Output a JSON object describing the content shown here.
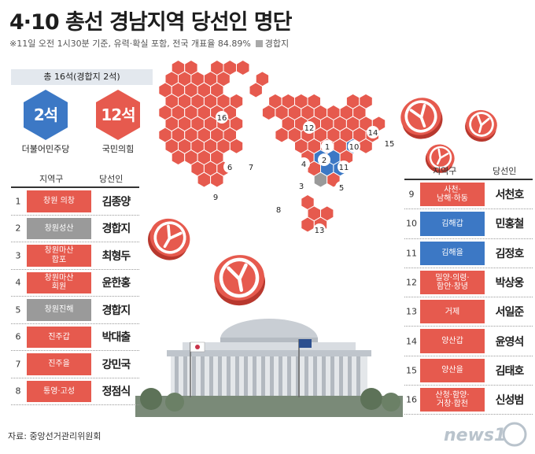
{
  "title": "4·10 총선 경남지역 당선인 명단",
  "subtitle": "※11일 오전 1시30분 기준, 유력·확실 포함, 전국 개표율 84.89%",
  "legend_label": "경합지",
  "summary": {
    "total": "총 16석(경합지 2석)",
    "parties": [
      {
        "seats": "2석",
        "name": "더불어민주당",
        "color": "#3c78c5"
      },
      {
        "seats": "12석",
        "name": "국민의힘",
        "color": "#e65a4e"
      }
    ]
  },
  "table_headers": {
    "district": "지역구",
    "winner": "당선인"
  },
  "rows": [
    {
      "num": "1",
      "district": "창원 의창",
      "name": "김종양",
      "party": "red"
    },
    {
      "num": "2",
      "district": "창원성산",
      "name": "경합지",
      "party": "gray"
    },
    {
      "num": "3",
      "district": "창원마산\n합포",
      "name": "최형두",
      "party": "red"
    },
    {
      "num": "4",
      "district": "창원마산\n회원",
      "name": "윤한홍",
      "party": "red"
    },
    {
      "num": "5",
      "district": "창원진해",
      "name": "경합지",
      "party": "gray"
    },
    {
      "num": "6",
      "district": "진주갑",
      "name": "박대출",
      "party": "red"
    },
    {
      "num": "7",
      "district": "진주을",
      "name": "강민국",
      "party": "red"
    },
    {
      "num": "8",
      "district": "통영·고성",
      "name": "정점식",
      "party": "red"
    },
    {
      "num": "9",
      "district": "사천·\n남해·하동",
      "name": "서천호",
      "party": "red"
    },
    {
      "num": "10",
      "district": "김해갑",
      "name": "민홍철",
      "party": "blue"
    },
    {
      "num": "11",
      "district": "김해을",
      "name": "김정호",
      "party": "blue"
    },
    {
      "num": "12",
      "district": "밀양·의령·\n함안·창녕",
      "name": "박상웅",
      "party": "red"
    },
    {
      "num": "13",
      "district": "거제",
      "name": "서일준",
      "party": "red"
    },
    {
      "num": "14",
      "district": "양산갑",
      "name": "윤영석",
      "party": "red"
    },
    {
      "num": "15",
      "district": "양산을",
      "name": "김태호",
      "party": "red"
    },
    {
      "num": "16",
      "district": "산청·함양·\n거창·합천",
      "name": "신성범",
      "party": "red"
    }
  ],
  "map_labels": [
    "1",
    "2",
    "3",
    "4",
    "5",
    "6",
    "7",
    "8",
    "9",
    "10",
    "11",
    "12",
    "13",
    "14",
    "15",
    "16"
  ],
  "source": "자료: 중앙선거관리위원회",
  "logo": "news1",
  "colors": {
    "red": "#e65a4e",
    "blue": "#3c78c5",
    "gray": "#9a9a9a"
  }
}
